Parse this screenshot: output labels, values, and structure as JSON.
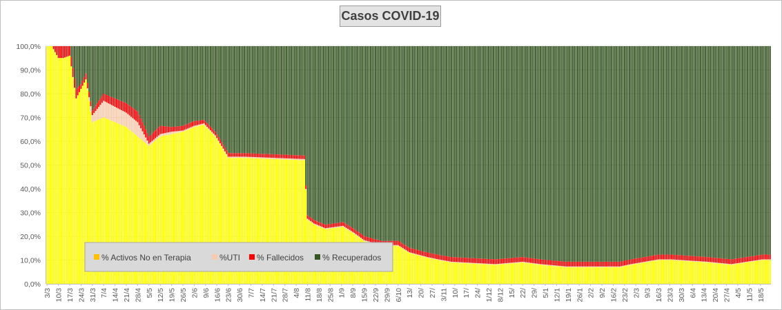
{
  "chart_data": {
    "type": "bar",
    "stacked": "percent",
    "title": "Casos  COVID-19",
    "xlabel": "",
    "ylabel": "",
    "ylim": [
      0,
      100
    ],
    "y_ticks": [
      "0,0%",
      "10,0%",
      "20,0%",
      "30,0%",
      "40,0%",
      "50,0%",
      "60,0%",
      "70,0%",
      "80,0%",
      "90,0%",
      "100,0%"
    ],
    "x_tick_labels": [
      "3/3",
      "10/3",
      "17/3",
      "24/3",
      "31/3",
      "7/4",
      "14/4",
      "21/4",
      "28/4",
      "5/5",
      "12/5",
      "19/5",
      "26/5",
      "2/6",
      "9/6",
      "16/6",
      "23/6",
      "30/6",
      "7/7",
      "14/7",
      "21/7",
      "28/7",
      "4/8",
      "11/8",
      "18/8",
      "25/8",
      "1/9",
      "8/9",
      "15/9",
      "22/9",
      "29/9",
      "6/10",
      "13/",
      "20/",
      "27/",
      "3/11",
      "10/",
      "17/",
      "24/",
      "1/12",
      "8/12",
      "15/",
      "22/",
      "29/",
      "5/1",
      "12/1",
      "19/1",
      "26/1",
      "2/2",
      "9/2",
      "16/2",
      "23/2",
      "2/3",
      "9/3",
      "16/3",
      "23/3",
      "30/3",
      "6/4",
      "13/4",
      "20/4",
      "27/4",
      "4/5",
      "11/5",
      "18/5"
    ],
    "days_per_label": 7,
    "legend_position": "bottom-left",
    "grid": true,
    "colors": {
      "activos": "#ffff00",
      "uti": "#f8cbad",
      "fallecidos": "#ff0000",
      "recuperados": "#375623",
      "legend_activos_marker": "#ffc000"
    },
    "anchor_day_index": [
      0,
      3,
      7,
      10,
      14,
      18,
      21,
      24,
      28,
      35,
      49,
      56,
      63,
      70,
      77,
      84,
      91,
      97,
      104,
      112,
      122,
      159,
      161,
      165,
      172,
      183,
      190,
      196,
      207,
      217,
      224,
      235,
      242,
      250,
      277,
      294,
      305,
      321,
      330,
      347,
      354,
      361,
      378,
      386,
      408,
      423,
      442
    ],
    "series": [
      {
        "name": "% Activos No en Terapia",
        "key": "activos",
        "values": [
          100,
          100,
          95,
          95,
          96,
          78,
          82,
          86,
          68,
          70,
          66,
          62,
          58,
          62,
          63,
          64,
          66,
          67,
          62,
          53,
          53,
          52,
          27,
          25,
          23,
          24,
          21,
          18,
          16,
          16,
          13,
          11,
          10,
          9,
          8,
          9,
          8,
          7,
          7,
          7,
          7,
          8,
          10,
          10,
          9,
          8,
          10
        ]
      },
      {
        "name": "%UTI",
        "key": "uti",
        "values": [
          0,
          0,
          0,
          0,
          0,
          0,
          0,
          0,
          3,
          7,
          6,
          6,
          1,
          1,
          1,
          0.5,
          0.5,
          0.5,
          0.5,
          0.5,
          0.5,
          0.5,
          0.4,
          0.4,
          0.4,
          0.4,
          0.4,
          0.4,
          0.3,
          0.3,
          0.3,
          0.3,
          0.3,
          0.3,
          0.3,
          0.3,
          0.3,
          0.3,
          0.3,
          0.3,
          0.3,
          0.3,
          0.3,
          0.3,
          0.3,
          0.3,
          0.3
        ]
      },
      {
        "name": "% Fallecidos",
        "key": "fallecidos",
        "values": [
          0,
          0,
          5,
          5,
          4,
          4,
          2,
          2.5,
          2,
          3,
          4,
          4.5,
          3,
          3.5,
          2,
          2,
          2,
          1.5,
          1.5,
          1.5,
          1.5,
          1.5,
          1.5,
          1.5,
          1.5,
          1.6,
          1.6,
          1.7,
          1.7,
          1.8,
          1.9,
          1.9,
          1.9,
          2,
          2,
          2,
          2,
          2,
          2,
          2,
          2,
          2,
          2,
          2,
          2,
          2,
          2
        ]
      }
    ],
    "recuperados_name": "% Recuperados",
    "recuperados_note": "remainder to 100%"
  }
}
